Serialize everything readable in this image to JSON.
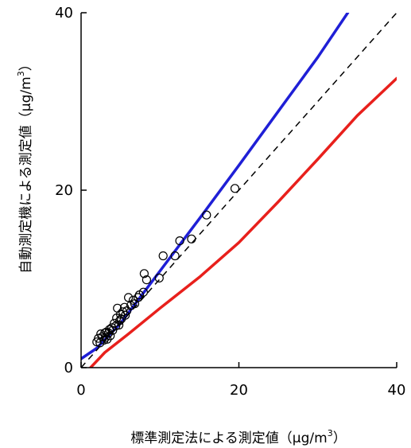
{
  "chart_data": {
    "type": "scatter",
    "xlabel": "標準測定法による測定値",
    "xlabel_unit_pre": "（μg/m",
    "xlabel_unit_sup": "3",
    "xlabel_unit_post": "）",
    "ylabel": "自動測定機による測定値",
    "ylabel_unit_pre": "（μg/m",
    "ylabel_unit_sup": "3",
    "ylabel_unit_post": "）",
    "xlim": [
      0,
      40
    ],
    "ylim": [
      0,
      40
    ],
    "xticks": [
      "0",
      "20",
      "40"
    ],
    "yticks": [
      "0",
      "20",
      "40"
    ],
    "grid": false,
    "legend": "none",
    "series": [
      {
        "kind": "points",
        "marker": "open-circle",
        "color": "#000000",
        "points": [
          [
            2.0,
            2.9
          ],
          [
            2.2,
            3.3
          ],
          [
            2.4,
            2.8
          ],
          [
            2.5,
            3.8
          ],
          [
            2.7,
            3.5
          ],
          [
            2.9,
            3.1
          ],
          [
            3.0,
            3.9
          ],
          [
            3.1,
            3.4
          ],
          [
            3.2,
            4.0
          ],
          [
            3.3,
            3.2
          ],
          [
            3.5,
            3.9
          ],
          [
            3.6,
            4.3
          ],
          [
            3.7,
            3.6
          ],
          [
            3.9,
            4.5
          ],
          [
            4.0,
            4.2
          ],
          [
            4.2,
            5.0
          ],
          [
            4.4,
            4.7
          ],
          [
            4.5,
            5.6
          ],
          [
            4.6,
            6.7
          ],
          [
            4.8,
            4.8
          ],
          [
            4.9,
            5.3
          ],
          [
            5.0,
            6.0
          ],
          [
            5.1,
            5.5
          ],
          [
            5.3,
            6.3
          ],
          [
            5.5,
            6.8
          ],
          [
            5.6,
            5.9
          ],
          [
            5.8,
            6.4
          ],
          [
            6.0,
            7.9
          ],
          [
            6.3,
            7.0
          ],
          [
            6.6,
            7.6
          ],
          [
            6.8,
            7.2
          ],
          [
            7.2,
            7.9
          ],
          [
            7.4,
            8.2
          ],
          [
            7.9,
            8.5
          ],
          [
            8.0,
            10.6
          ],
          [
            8.3,
            9.9
          ],
          [
            9.9,
            10.1
          ],
          [
            10.4,
            12.6
          ],
          [
            11.9,
            12.6
          ],
          [
            12.5,
            14.3
          ],
          [
            14.0,
            14.5
          ],
          [
            15.9,
            17.2
          ],
          [
            19.5,
            20.2
          ]
        ]
      },
      {
        "kind": "line",
        "color": "#1f1fd6",
        "points": [
          [
            0,
            1.0
          ],
          [
            2,
            2.2
          ],
          [
            5,
            5.0
          ],
          [
            10,
            10.9
          ],
          [
            15,
            16.8
          ],
          [
            20,
            22.8
          ],
          [
            25,
            28.9
          ],
          [
            30,
            35.0
          ],
          [
            33.8,
            40.0
          ]
        ]
      },
      {
        "kind": "line",
        "color": "#e8201c",
        "points": [
          [
            1.2,
            0
          ],
          [
            3,
            1.7
          ],
          [
            6,
            3.8
          ],
          [
            10,
            6.7
          ],
          [
            15,
            10.2
          ],
          [
            20,
            14.1
          ],
          [
            25,
            18.7
          ],
          [
            30,
            23.5
          ],
          [
            35,
            28.4
          ],
          [
            40,
            32.6
          ]
        ]
      },
      {
        "kind": "line",
        "style": "dashed",
        "color": "#000000",
        "points": [
          [
            0,
            0
          ],
          [
            40,
            40
          ]
        ]
      }
    ]
  }
}
